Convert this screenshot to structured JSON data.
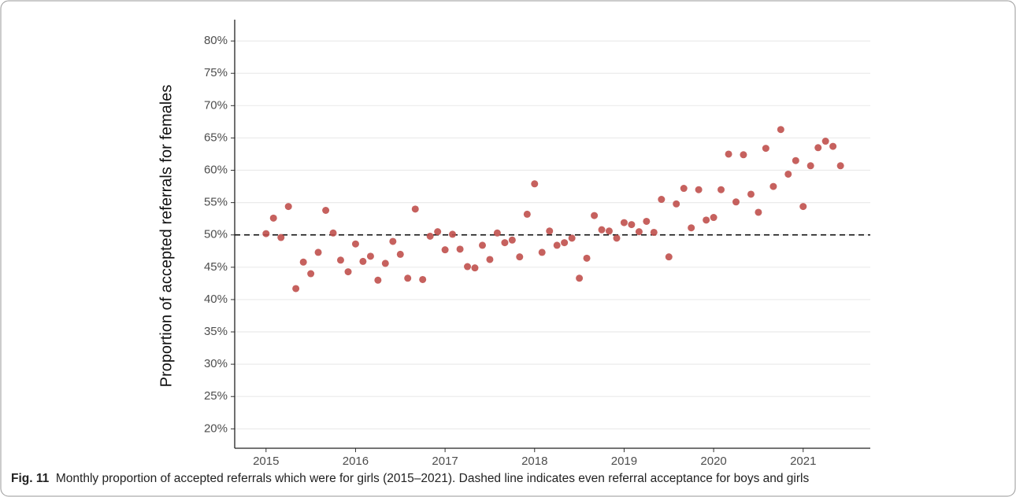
{
  "chart_data": {
    "type": "scatter",
    "y_label": "Proportion of accepted referrals for females",
    "caption_label": "Fig. 11",
    "caption": "Monthly proportion of accepted referrals which were for girls (2015–2021). Dashed line indicates even referral acceptance for boys and girls",
    "color": "#c0504d",
    "reference_line": {
      "value": 50
    },
    "xlim": [
      2014.65,
      2021.75
    ],
    "xticks": [
      2015,
      2016,
      2017,
      2018,
      2019,
      2020,
      2021
    ],
    "ylim": [
      17,
      83.3
    ],
    "yticks": [
      {
        "value": 20,
        "label": "20%"
      },
      {
        "value": 25,
        "label": "25%"
      },
      {
        "value": 30,
        "label": "30%"
      },
      {
        "value": 35,
        "label": "35%"
      },
      {
        "value": 40,
        "label": "40%"
      },
      {
        "value": 45,
        "label": "45%"
      },
      {
        "value": 50,
        "label": "50%"
      },
      {
        "value": 55,
        "label": "55%"
      },
      {
        "value": 60,
        "label": "60%"
      },
      {
        "value": 65,
        "label": "65%"
      },
      {
        "value": 70,
        "label": "70%"
      },
      {
        "value": 75,
        "label": "75%"
      },
      {
        "value": 80,
        "label": "80%"
      }
    ],
    "grid": true,
    "x": [
      2015,
      2015.083,
      2015.167,
      2015.25,
      2015.333,
      2015.417,
      2015.5,
      2015.583,
      2015.667,
      2015.75,
      2015.833,
      2015.917,
      2016,
      2016.083,
      2016.167,
      2016.25,
      2016.333,
      2016.417,
      2016.5,
      2016.583,
      2016.667,
      2016.75,
      2016.833,
      2016.917,
      2017,
      2017.083,
      2017.167,
      2017.25,
      2017.333,
      2017.417,
      2017.5,
      2017.583,
      2017.667,
      2017.75,
      2017.833,
      2017.917,
      2018,
      2018.083,
      2018.167,
      2018.25,
      2018.333,
      2018.417,
      2018.5,
      2018.583,
      2018.667,
      2018.75,
      2018.833,
      2018.917,
      2019,
      2019.083,
      2019.167,
      2019.25,
      2019.333,
      2019.417,
      2019.5,
      2019.583,
      2019.667,
      2019.75,
      2019.833,
      2019.917,
      2020,
      2020.083,
      2020.167,
      2020.25,
      2020.333,
      2020.417,
      2020.5,
      2020.583,
      2020.667,
      2020.75,
      2020.833,
      2020.917,
      2021,
      2021.083,
      2021.167,
      2021.25,
      2021.333,
      2021.417
    ],
    "values": [
      50.2,
      52.6,
      49.6,
      54.4,
      41.7,
      45.8,
      44.0,
      47.3,
      53.8,
      50.3,
      46.1,
      44.3,
      48.6,
      45.9,
      46.7,
      43.0,
      45.6,
      49.0,
      47.0,
      43.3,
      54.0,
      43.1,
      49.8,
      50.5,
      47.7,
      50.1,
      47.8,
      45.1,
      44.9,
      48.4,
      46.2,
      50.3,
      48.8,
      49.2,
      46.6,
      53.2,
      57.9,
      47.3,
      50.6,
      48.4,
      48.8,
      49.5,
      43.3,
      46.4,
      53.0,
      50.8,
      50.6,
      49.5,
      51.9,
      51.6,
      50.5,
      52.1,
      50.4,
      55.5,
      46.6,
      54.8,
      57.2,
      51.1,
      57.0,
      52.3,
      52.7,
      57.0,
      62.5,
      55.1,
      62.4,
      56.3,
      53.5,
      63.4,
      57.5,
      66.3,
      59.4,
      61.5,
      54.4,
      60.7,
      63.5,
      64.5,
      63.7,
      60.7
    ]
  }
}
